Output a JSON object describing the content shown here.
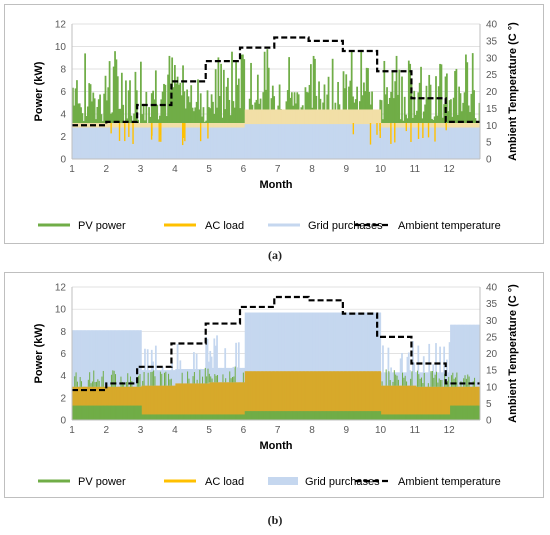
{
  "captions": [
    "(a)",
    "(b)"
  ],
  "legend": {
    "pv": "PV power",
    "ac": "AC load",
    "grid": "Grid purchases",
    "temp": "Ambient temperature"
  },
  "colors": {
    "pv": "#70ad47",
    "ac": "#ffc000",
    "grid": "#c5d7ef",
    "temp": "#000000"
  },
  "chart_data": [
    {
      "type": "area",
      "panel": "a",
      "xlabel": "Month",
      "ylabel": "Power (kW)",
      "y2label": "Ambient Temperature (C °)",
      "xlim": [
        1,
        12.9
      ],
      "ylim": [
        0,
        12
      ],
      "y2lim": [
        0,
        40
      ],
      "x_ticks": [
        1,
        2,
        3,
        4,
        5,
        6,
        7,
        8,
        9,
        10,
        11,
        12
      ],
      "y_ticks": [
        0,
        2,
        4,
        6,
        8,
        10,
        12
      ],
      "y2_ticks": [
        0,
        5,
        10,
        15,
        20,
        25,
        30,
        35,
        40
      ],
      "series": [
        {
          "name": "PV power",
          "kind": "spiky-area",
          "base_kw": 3.2,
          "peak_kw": 9.8,
          "min_kw": 3.0
        },
        {
          "name": "AC load",
          "kind": "step-band",
          "months": [
            1,
            2,
            3,
            4,
            5,
            6,
            7,
            8,
            9,
            10,
            11,
            12
          ],
          "values": [
            3.2,
            3.2,
            3.2,
            3.2,
            3.2,
            4.4,
            4.4,
            4.4,
            4.4,
            3.2,
            3.2,
            3.2
          ],
          "dips_kw": 1.2
        },
        {
          "name": "Grid purchases",
          "kind": "step-band",
          "months": [
            1,
            2,
            3,
            4,
            5,
            6,
            7,
            8,
            9,
            10,
            11,
            12
          ],
          "values": [
            2.8,
            2.8,
            2.8,
            2.8,
            2.8,
            3.1,
            3.1,
            3.1,
            3.1,
            2.8,
            2.8,
            2.8
          ]
        },
        {
          "name": "Ambient temperature",
          "kind": "step-line",
          "axis": "right",
          "x": [
            1,
            2,
            2.9,
            3.9,
            4.9,
            5.9,
            6.9,
            7.9,
            8.9,
            9.9,
            10.9,
            11.9,
            12.9
          ],
          "y": [
            10,
            11,
            16,
            23,
            29,
            33,
            36,
            35,
            32,
            26,
            18,
            11,
            11
          ]
        }
      ]
    },
    {
      "type": "area",
      "panel": "b",
      "xlabel": "Month",
      "ylabel": "Power (kW)",
      "y2label": "Ambient Temperature (C °)",
      "xlim": [
        1,
        12.9
      ],
      "ylim": [
        0,
        12
      ],
      "y2lim": [
        0,
        40
      ],
      "x_ticks": [
        1,
        2,
        3,
        4,
        5,
        6,
        7,
        8,
        9,
        10,
        11,
        12
      ],
      "y_ticks": [
        0,
        2,
        4,
        6,
        8,
        10,
        12
      ],
      "y2_ticks": [
        0,
        5,
        10,
        15,
        20,
        25,
        30,
        35,
        40
      ],
      "series": [
        {
          "name": "Grid purchases",
          "kind": "step-band",
          "months": [
            1,
            2,
            3,
            4,
            5,
            6,
            7,
            8,
            9,
            10,
            11,
            12
          ],
          "values": [
            8.1,
            8.1,
            4.5,
            4.6,
            4.7,
            9.7,
            9.7,
            9.7,
            9.7,
            4.3,
            4.3,
            8.6
          ]
        },
        {
          "name": "AC load",
          "kind": "step-band",
          "months": [
            1,
            2,
            3,
            4,
            5,
            6,
            7,
            8,
            9,
            10,
            11,
            12
          ],
          "values": [
            3.0,
            3.0,
            3.1,
            3.3,
            3.4,
            4.4,
            4.4,
            4.4,
            4.4,
            3.1,
            3.0,
            3.0
          ]
        },
        {
          "name": "PV power",
          "kind": "step-band",
          "months": [
            1,
            2,
            3,
            4,
            5,
            6,
            7,
            8,
            9,
            10,
            11,
            12
          ],
          "values": [
            1.3,
            1.3,
            0.5,
            0.5,
            0.5,
            0.8,
            0.8,
            0.8,
            0.8,
            0.5,
            0.5,
            1.3
          ]
        },
        {
          "name": "Ambient temperature",
          "kind": "step-line",
          "axis": "right",
          "x": [
            1,
            2,
            2.9,
            3.9,
            4.9,
            5.9,
            6.9,
            7.9,
            8.9,
            9.9,
            10.9,
            11.9,
            12.9
          ],
          "y": [
            9,
            11,
            16,
            23,
            29,
            34,
            37,
            36,
            32,
            25,
            17,
            11,
            11
          ]
        }
      ]
    }
  ]
}
